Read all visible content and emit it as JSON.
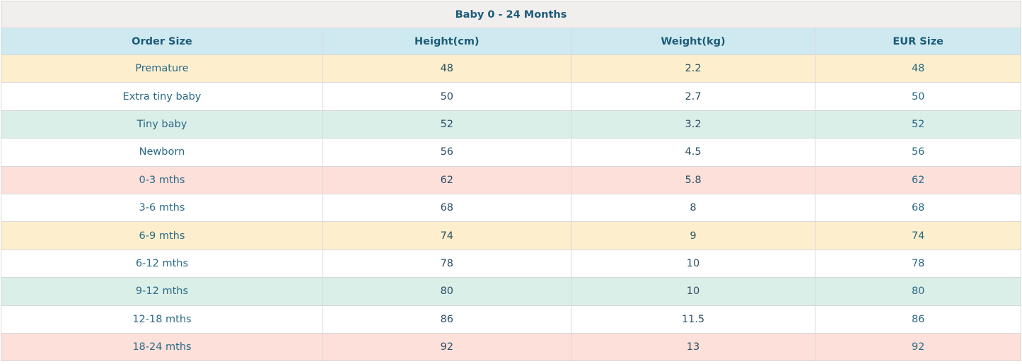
{
  "table": {
    "title": "Baby 0 - 24 Months",
    "headers": [
      "Order Size",
      "Height(cm)",
      "Weight(kg)",
      "EUR Size"
    ],
    "row_colors": [
      "#fdefcd",
      "#ffffff",
      "#dbefe9",
      "#ffffff",
      "#fde0da",
      "#ffffff",
      "#fdefcd",
      "#ffffff",
      "#dbefe9",
      "#ffffff",
      "#fde0da"
    ],
    "rows": [
      [
        "Premature",
        "48",
        "2.2",
        "48"
      ],
      [
        "Extra tiny baby",
        "50",
        "2.7",
        "50"
      ],
      [
        "Tiny baby",
        "52",
        "3.2",
        "52"
      ],
      [
        "Newborn",
        "56",
        "4.5",
        "56"
      ],
      [
        "0-3 mths",
        "62",
        "5.8",
        "62"
      ],
      [
        "3-6 mths",
        "68",
        "8",
        "68"
      ],
      [
        "6-9 mths",
        "74",
        "9",
        "74"
      ],
      [
        "6-12 mths",
        "78",
        "10",
        "78"
      ],
      [
        "9-12 mths",
        "80",
        "10",
        "80"
      ],
      [
        "12-18 mths",
        "86",
        "11.5",
        "86"
      ],
      [
        "18-24 mths",
        "92",
        "13",
        "92"
      ]
    ]
  }
}
